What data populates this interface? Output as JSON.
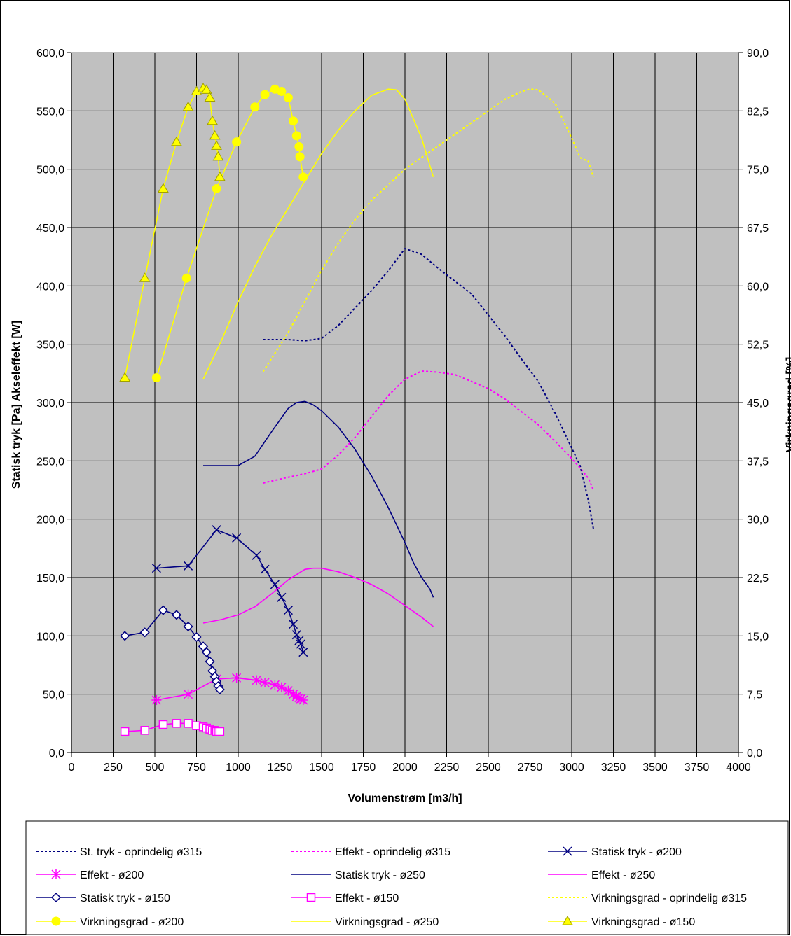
{
  "chart_data": {
    "type": "line",
    "title": "",
    "xlabel": "Volumenstrøm [m3/h]",
    "ylabel": "Statisk tryk [Pa]  Akseleffekt [W]",
    "y2label": "Virkningsgrad [%]",
    "xlim": [
      0,
      4000
    ],
    "ylim": [
      0,
      600
    ],
    "y2lim": [
      0,
      90
    ],
    "x_ticks": [
      "0",
      "250",
      "500",
      "750",
      "1000",
      "1250",
      "1500",
      "1750",
      "2000",
      "2250",
      "2500",
      "2750",
      "3000",
      "3250",
      "3500",
      "3750",
      "4000"
    ],
    "y_ticks": [
      "0,0",
      "50,0",
      "100,0",
      "150,0",
      "200,0",
      "250,0",
      "300,0",
      "350,0",
      "400,0",
      "450,0",
      "500,0",
      "550,0",
      "600,0"
    ],
    "y2_ticks": [
      "0,0",
      "7,5",
      "15,0",
      "22,5",
      "30,0",
      "37,5",
      "45,0",
      "52,5",
      "60,0",
      "67,5",
      "75,0",
      "82,5",
      "90,0"
    ],
    "grid": true,
    "plot_background": "#c0c0c0",
    "legend_position": "bottom",
    "series": [
      {
        "name": "St. tryk - oprindelig ø315",
        "axis": "left",
        "color": "#000080",
        "style": "dotted",
        "marker": "none",
        "x": [
          1150,
          1300,
          1400,
          1500,
          1600,
          1700,
          1800,
          1900,
          2000,
          2100,
          2200,
          2300,
          2400,
          2500,
          2600,
          2700,
          2800,
          2900,
          3000,
          3050,
          3100,
          3130
        ],
        "y": [
          354,
          354,
          353,
          355,
          366,
          381,
          396,
          413,
          432,
          427,
          415,
          404,
          393,
          375,
          357,
          337,
          318,
          291,
          261,
          246,
          216,
          192
        ]
      },
      {
        "name": "Effekt - oprindelig ø315",
        "axis": "left",
        "color": "#ff00ff",
        "style": "dotted",
        "marker": "none",
        "x": [
          1150,
          1300,
          1400,
          1500,
          1600,
          1700,
          1800,
          1900,
          2000,
          2100,
          2200,
          2300,
          2400,
          2500,
          2600,
          2700,
          2800,
          2900,
          3000,
          3050,
          3100,
          3130
        ],
        "y": [
          231,
          236,
          239,
          243,
          255,
          270,
          288,
          306,
          320,
          327,
          326,
          324,
          318,
          312,
          303,
          292,
          281,
          267,
          252,
          244,
          235,
          225
        ]
      },
      {
        "name": "Statisk tryk - ø200",
        "axis": "left",
        "color": "#000080",
        "style": "solid",
        "marker": "x",
        "x": [
          510,
          700,
          870,
          990,
          1110,
          1160,
          1220,
          1260,
          1300,
          1330,
          1350,
          1365,
          1375,
          1390
        ],
        "y": [
          158,
          160,
          191,
          184,
          169,
          157,
          144,
          133,
          122,
          110,
          101,
          96,
          93,
          86
        ]
      },
      {
        "name": "Effekt - ø200",
        "axis": "left",
        "color": "#ff00ff",
        "style": "solid",
        "marker": "star",
        "x": [
          510,
          700,
          870,
          990,
          1110,
          1160,
          1220,
          1260,
          1300,
          1330,
          1350,
          1365,
          1375,
          1390
        ],
        "y": [
          45,
          50,
          63,
          64,
          62,
          60,
          58,
          56,
          53,
          50,
          48,
          47,
          46,
          45
        ]
      },
      {
        "name": "Statisk tryk - ø250",
        "axis": "left",
        "color": "#000080",
        "style": "solid",
        "marker": "none",
        "x": [
          790,
          900,
          1000,
          1100,
          1200,
          1300,
          1350,
          1400,
          1450,
          1500,
          1600,
          1700,
          1800,
          1900,
          2000,
          2050,
          2100,
          2150,
          2170
        ],
        "y": [
          246,
          246,
          246,
          254,
          275,
          295,
          300,
          301,
          298,
          293,
          279,
          260,
          237,
          210,
          180,
          163,
          150,
          140,
          133
        ]
      },
      {
        "name": "Effekt - ø250",
        "axis": "left",
        "color": "#ff00ff",
        "style": "solid",
        "marker": "none",
        "x": [
          790,
          900,
          1000,
          1100,
          1200,
          1300,
          1400,
          1450,
          1500,
          1600,
          1700,
          1800,
          1900,
          2000,
          2100,
          2170
        ],
        "y": [
          111,
          114,
          118,
          125,
          136,
          148,
          157,
          158,
          158,
          155,
          150,
          144,
          136,
          126,
          116,
          108
        ]
      },
      {
        "name": "Statisk tryk - ø150",
        "axis": "left",
        "color": "#000080",
        "style": "solid",
        "marker": "diamond",
        "x": [
          320,
          440,
          550,
          630,
          700,
          750,
          790,
          810,
          830,
          845,
          860,
          870,
          880,
          890
        ],
        "y": [
          100,
          103,
          122,
          118,
          108,
          99,
          91,
          86,
          78,
          70,
          65,
          61,
          57,
          54
        ]
      },
      {
        "name": "Effekt - ø150",
        "axis": "left",
        "color": "#ff00ff",
        "style": "solid",
        "marker": "square",
        "x": [
          320,
          440,
          550,
          630,
          700,
          750,
          790,
          810,
          830,
          845,
          860,
          870,
          880,
          890
        ],
        "y": [
          18,
          19,
          24,
          25,
          25,
          23,
          22,
          21,
          20,
          19,
          19,
          18,
          18,
          18
        ]
      },
      {
        "name": "Virkningsgrad - oprindelig ø315",
        "axis": "right",
        "color": "#ffff00",
        "style": "dotted",
        "marker": "none",
        "x": [
          1150,
          1300,
          1400,
          1500,
          1600,
          1700,
          1800,
          1900,
          2000,
          2100,
          2200,
          2300,
          2400,
          2500,
          2600,
          2700,
          2750,
          2800,
          2900,
          3000,
          3050,
          3100,
          3130
        ],
        "y": [
          49,
          54,
          58,
          62,
          65.5,
          68.5,
          71,
          73,
          75,
          76.5,
          78,
          79.5,
          81,
          82.5,
          84,
          85,
          85.3,
          85.2,
          83.5,
          79,
          76.5,
          76,
          74
        ]
      },
      {
        "name": "Virkningsgrad - ø200",
        "axis": "right",
        "color": "#ffff00",
        "style": "solid",
        "marker": "circle",
        "x": [
          510,
          690,
          870,
          990,
          1100,
          1160,
          1220,
          1260,
          1300,
          1330,
          1350,
          1365,
          1370,
          1390
        ],
        "y": [
          48.2,
          61,
          72.5,
          78.5,
          83,
          84.6,
          85.3,
          85,
          84.2,
          81.2,
          79.3,
          77.9,
          76.6,
          74
        ]
      },
      {
        "name": "Virkningsgrad - ø250",
        "axis": "right",
        "color": "#ffff00",
        "style": "solid",
        "marker": "none",
        "x": [
          790,
          900,
          1000,
          1100,
          1200,
          1300,
          1400,
          1500,
          1600,
          1700,
          1800,
          1900,
          1950,
          2000,
          2050,
          2100,
          2170
        ],
        "y": [
          48,
          53,
          58,
          62.5,
          66.5,
          70,
          73.5,
          77,
          80,
          82.5,
          84.5,
          85.3,
          85.2,
          84,
          81.5,
          79,
          74
        ]
      },
      {
        "name": "Virkningsgrad - ø150",
        "axis": "right",
        "color": "#ffff00",
        "style": "solid",
        "marker": "triangle",
        "x": [
          320,
          440,
          550,
          630,
          700,
          750,
          790,
          810,
          830,
          845,
          860,
          870,
          880,
          890
        ],
        "y": [
          48.2,
          61,
          72.5,
          78.5,
          83,
          85,
          85.4,
          85.2,
          84.2,
          81.2,
          79.3,
          78,
          76.6,
          74
        ]
      }
    ]
  }
}
